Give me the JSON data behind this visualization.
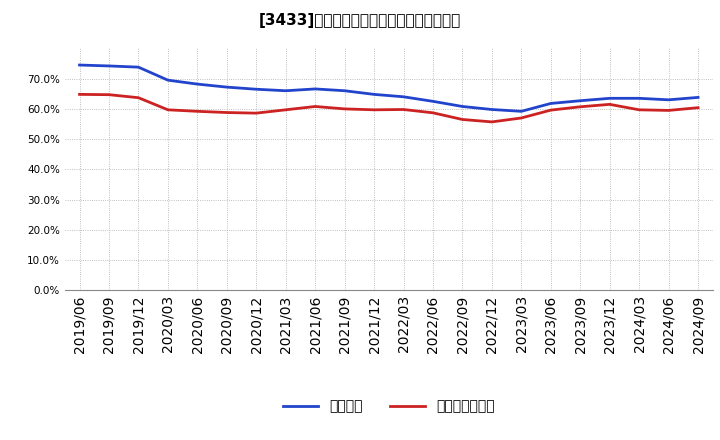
{
  "title": "[3433]　固定比率、固定長期適合率の推移",
  "ylim": [
    0.0,
    0.8
  ],
  "yticks": [
    0.0,
    0.1,
    0.2,
    0.3,
    0.4,
    0.5,
    0.6,
    0.7
  ],
  "x_labels": [
    "2019/06",
    "2019/09",
    "2019/12",
    "2020/03",
    "2020/06",
    "2020/09",
    "2020/12",
    "2021/03",
    "2021/06",
    "2021/09",
    "2021/12",
    "2022/03",
    "2022/06",
    "2022/09",
    "2022/12",
    "2023/03",
    "2023/06",
    "2023/09",
    "2023/12",
    "2024/03",
    "2024/06",
    "2024/09"
  ],
  "fixed_ratio": [
    0.745,
    0.742,
    0.738,
    0.695,
    0.682,
    0.672,
    0.665,
    0.66,
    0.666,
    0.66,
    0.648,
    0.64,
    0.625,
    0.608,
    0.598,
    0.592,
    0.618,
    0.627,
    0.635,
    0.635,
    0.63,
    0.638
  ],
  "fixed_longterm_ratio": [
    0.648,
    0.647,
    0.637,
    0.597,
    0.592,
    0.588,
    0.586,
    0.597,
    0.608,
    0.6,
    0.597,
    0.598,
    0.587,
    0.565,
    0.557,
    0.57,
    0.596,
    0.607,
    0.615,
    0.597,
    0.595,
    0.604
  ],
  "line1_color": "#2244cc",
  "line2_color": "#cc2222",
  "line1_label": "固定比率",
  "line2_label": "固定長期適合率",
  "background_color": "#ffffff",
  "grid_color": "#aaaaaa",
  "title_fontsize": 11,
  "tick_fontsize": 7.5,
  "legend_fontsize": 9
}
